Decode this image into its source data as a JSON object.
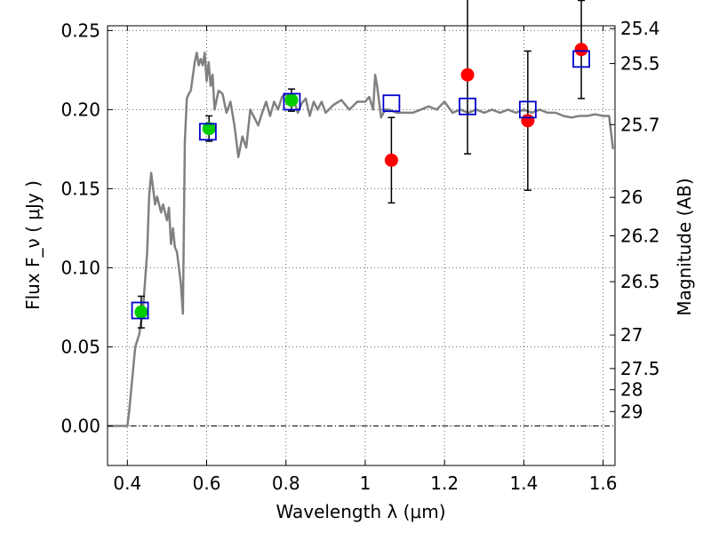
{
  "chart_data": {
    "type": "scatter",
    "title": "",
    "xlabel": "Wavelength  λ (μm)",
    "ylabel": "Flux  F_ν  ( μJy )",
    "ylabel_right": "Magnitude (AB)",
    "xlim": [
      0.35,
      1.63
    ],
    "ylim": [
      -0.025,
      0.253
    ],
    "grid": true,
    "x_ticks": [
      {
        "value": 0.4,
        "label": "0.4"
      },
      {
        "value": 0.6,
        "label": "0.6"
      },
      {
        "value": 0.8,
        "label": "0.8"
      },
      {
        "value": 1.0,
        "label": "1"
      },
      {
        "value": 1.2,
        "label": "1.2"
      },
      {
        "value": 1.4,
        "label": "1.4"
      },
      {
        "value": 1.6,
        "label": "1.6"
      }
    ],
    "y_ticks": [
      {
        "value": 0.0,
        "label": "0.00"
      },
      {
        "value": 0.05,
        "label": "0.05"
      },
      {
        "value": 0.1,
        "label": "0.10"
      },
      {
        "value": 0.15,
        "label": "0.15"
      },
      {
        "value": 0.2,
        "label": "0.20"
      },
      {
        "value": 0.25,
        "label": "0.25"
      }
    ],
    "right_ticks": [
      {
        "label": "25.4",
        "flux": 0.2512
      },
      {
        "label": "25.5",
        "flux": 0.2291
      },
      {
        "label": "25.7",
        "flux": 0.1905
      },
      {
        "label": "26",
        "flux": 0.1445
      },
      {
        "label": "26.2",
        "flux": 0.1202
      },
      {
        "label": "26.5",
        "flux": 0.0912
      },
      {
        "label": "27",
        "flux": 0.0575
      },
      {
        "label": "27.5",
        "flux": 0.0363
      },
      {
        "label": "28",
        "flux": 0.0229
      },
      {
        "label": "29",
        "flux": 0.0091
      }
    ],
    "series": [
      {
        "kind": "line",
        "color": "#808080",
        "x": [
          0.35,
          0.4,
          0.405,
          0.41,
          0.42,
          0.43,
          0.44,
          0.45,
          0.455,
          0.46,
          0.465,
          0.47,
          0.475,
          0.48,
          0.485,
          0.49,
          0.5,
          0.505,
          0.51,
          0.515,
          0.52,
          0.525,
          0.53,
          0.535,
          0.54,
          0.545,
          0.55,
          0.555,
          0.56,
          0.57,
          0.575,
          0.58,
          0.585,
          0.59,
          0.595,
          0.6,
          0.605,
          0.61,
          0.615,
          0.62,
          0.63,
          0.64,
          0.65,
          0.66,
          0.67,
          0.68,
          0.69,
          0.7,
          0.71,
          0.72,
          0.73,
          0.74,
          0.75,
          0.76,
          0.77,
          0.78,
          0.79,
          0.8,
          0.81,
          0.82,
          0.83,
          0.84,
          0.85,
          0.86,
          0.87,
          0.88,
          0.89,
          0.9,
          0.92,
          0.94,
          0.96,
          0.98,
          1.0,
          1.01,
          1.02,
          1.025,
          1.03,
          1.035,
          1.04,
          1.05,
          1.06,
          1.08,
          1.1,
          1.12,
          1.14,
          1.16,
          1.18,
          1.2,
          1.22,
          1.24,
          1.26,
          1.28,
          1.3,
          1.32,
          1.34,
          1.36,
          1.38,
          1.4,
          1.42,
          1.44,
          1.46,
          1.48,
          1.5,
          1.52,
          1.54,
          1.56,
          1.58,
          1.6,
          1.615,
          1.625
        ],
        "y": [
          0.0,
          0.0,
          0.01,
          0.024,
          0.05,
          0.058,
          0.075,
          0.11,
          0.145,
          0.16,
          0.15,
          0.14,
          0.145,
          0.14,
          0.135,
          0.14,
          0.13,
          0.138,
          0.115,
          0.125,
          0.113,
          0.11,
          0.1,
          0.09,
          0.071,
          0.18,
          0.207,
          0.21,
          0.212,
          0.23,
          0.236,
          0.228,
          0.232,
          0.228,
          0.236,
          0.218,
          0.23,
          0.215,
          0.222,
          0.2,
          0.212,
          0.21,
          0.198,
          0.205,
          0.19,
          0.17,
          0.183,
          0.176,
          0.2,
          0.195,
          0.19,
          0.198,
          0.205,
          0.196,
          0.205,
          0.2,
          0.208,
          0.21,
          0.204,
          0.206,
          0.198,
          0.204,
          0.207,
          0.196,
          0.205,
          0.2,
          0.205,
          0.198,
          0.203,
          0.206,
          0.2,
          0.205,
          0.205,
          0.208,
          0.2,
          0.222,
          0.215,
          0.205,
          0.195,
          0.2,
          0.2,
          0.198,
          0.198,
          0.198,
          0.2,
          0.202,
          0.2,
          0.205,
          0.198,
          0.2,
          0.198,
          0.2,
          0.198,
          0.2,
          0.198,
          0.2,
          0.198,
          0.2,
          0.198,
          0.2,
          0.198,
          0.198,
          0.196,
          0.195,
          0.196,
          0.196,
          0.197,
          0.196,
          0.196,
          0.175
        ]
      },
      {
        "kind": "markers",
        "marker": "circle",
        "color": "#00cc00",
        "x": [
          0.435,
          0.606,
          0.814
        ],
        "y": [
          0.072,
          0.188,
          0.206
        ],
        "yerr": [
          0.01,
          0.008,
          0.007
        ]
      },
      {
        "kind": "markers",
        "marker": "circle",
        "color": "#ff0000",
        "x": [
          1.066,
          1.258,
          1.41,
          1.545
        ],
        "y": [
          0.168,
          0.222,
          0.193,
          0.238
        ],
        "yerr": [
          0.027,
          0.05,
          0.044,
          0.031
        ]
      },
      {
        "kind": "markers",
        "marker": "square-open",
        "color": "#0000cc",
        "x": [
          0.432,
          0.603,
          0.815,
          1.066,
          1.258,
          1.41,
          1.545
        ],
        "y": [
          0.073,
          0.186,
          0.205,
          0.204,
          0.202,
          0.2,
          0.232
        ]
      }
    ]
  }
}
